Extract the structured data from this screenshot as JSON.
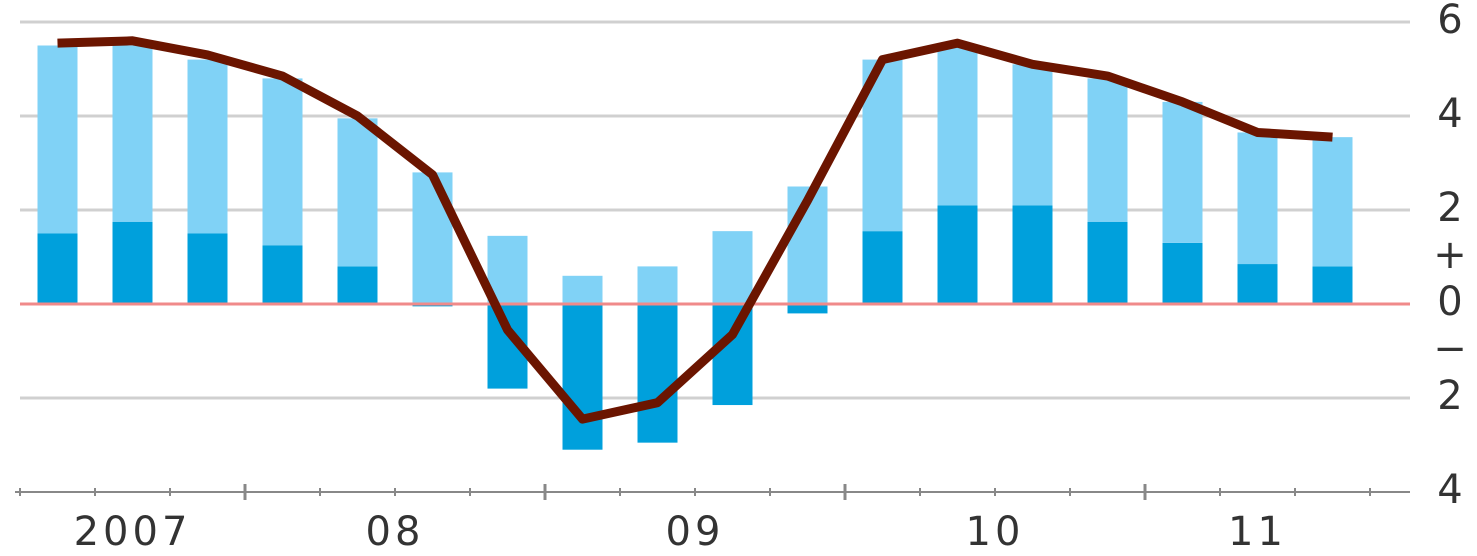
{
  "chart_data": {
    "type": "bar",
    "categories": [
      "2007",
      "2007",
      "2007",
      "08",
      "08",
      "08",
      "08",
      "09",
      "09",
      "09",
      "09",
      "10",
      "10",
      "10",
      "10",
      "11",
      "11",
      "11"
    ],
    "series": [
      {
        "color": "#00a0dc",
        "values": [
          1.5,
          1.75,
          1.5,
          1.25,
          0.8,
          -0.05,
          -1.8,
          -3.1,
          -2.95,
          -2.15,
          -0.2,
          1.55,
          2.1,
          2.1,
          1.75,
          1.3,
          0.85,
          0.8
        ]
      },
      {
        "color": "#80d2f6",
        "values": [
          4.0,
          3.75,
          3.7,
          3.55,
          3.15,
          2.8,
          1.45,
          0.6,
          0.8,
          1.55,
          2.5,
          3.65,
          3.4,
          3.0,
          3.05,
          3.0,
          2.8,
          2.75
        ]
      }
    ],
    "line": {
      "type": "line",
      "color": "#6b1500",
      "values": [
        5.55,
        5.6,
        5.3,
        4.85,
        4.0,
        2.75,
        -0.55,
        -2.45,
        -2.1,
        -0.65,
        2.2,
        5.2,
        5.55,
        5.1,
        4.85,
        4.3,
        3.65,
        3.55
      ]
    },
    "ylim": [
      -4,
      6
    ],
    "yticks": [
      {
        "value": -4,
        "label": "4"
      },
      {
        "value": -2,
        "label": "2"
      },
      0,
      2,
      4,
      6
    ],
    "sign_ticks": [
      {
        "value": 1,
        "label": "+"
      },
      {
        "value": -1,
        "label": "−"
      }
    ],
    "grid": true,
    "zero_line_color": "#f08a8a"
  }
}
